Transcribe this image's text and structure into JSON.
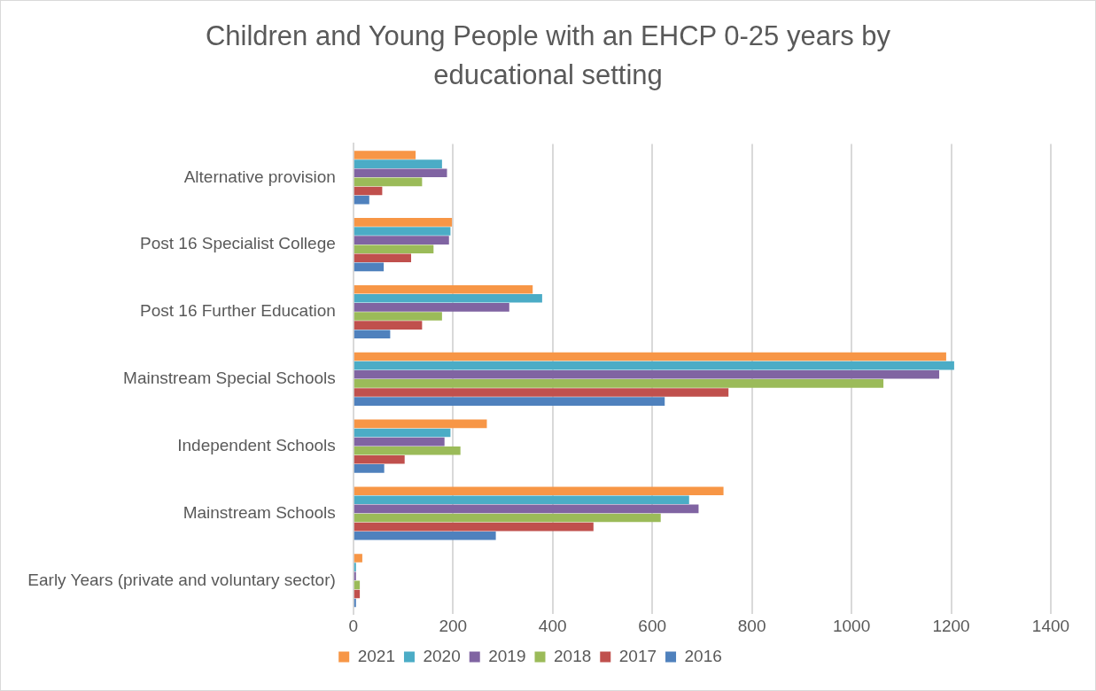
{
  "chart_data": {
    "type": "bar",
    "orientation": "horizontal",
    "title": "Children and Young People with an EHCP 0-25 years by educational setting",
    "categories": [
      "Alternative provision",
      "Post 16 Specialist College",
      "Post 16 Further Education",
      "Mainstream Special Schools",
      "Independent Schools",
      "Mainstream Schools",
      "Early Years (private and voluntary sector)"
    ],
    "series": [
      {
        "name": "2021",
        "color": "#f79646",
        "values": [
          125,
          198,
          360,
          1190,
          268,
          743,
          18
        ]
      },
      {
        "name": "2020",
        "color": "#4bacc6",
        "values": [
          178,
          195,
          379,
          1206,
          195,
          674,
          3
        ]
      },
      {
        "name": "2019",
        "color": "#8064a2",
        "values": [
          188,
          192,
          313,
          1176,
          183,
          693,
          3
        ]
      },
      {
        "name": "2018",
        "color": "#9bbb59",
        "values": [
          138,
          161,
          178,
          1064,
          215,
          617,
          13
        ]
      },
      {
        "name": "2017",
        "color": "#c0504d",
        "values": [
          58,
          116,
          138,
          753,
          103,
          482,
          13
        ]
      },
      {
        "name": "2016",
        "color": "#4f81bd",
        "values": [
          32,
          61,
          74,
          625,
          62,
          286,
          2
        ]
      }
    ],
    "xlim": [
      0,
      1400
    ],
    "xticks": [
      0,
      200,
      400,
      600,
      800,
      1000,
      1200,
      1400
    ],
    "grid": "x",
    "legend": "bottom"
  }
}
